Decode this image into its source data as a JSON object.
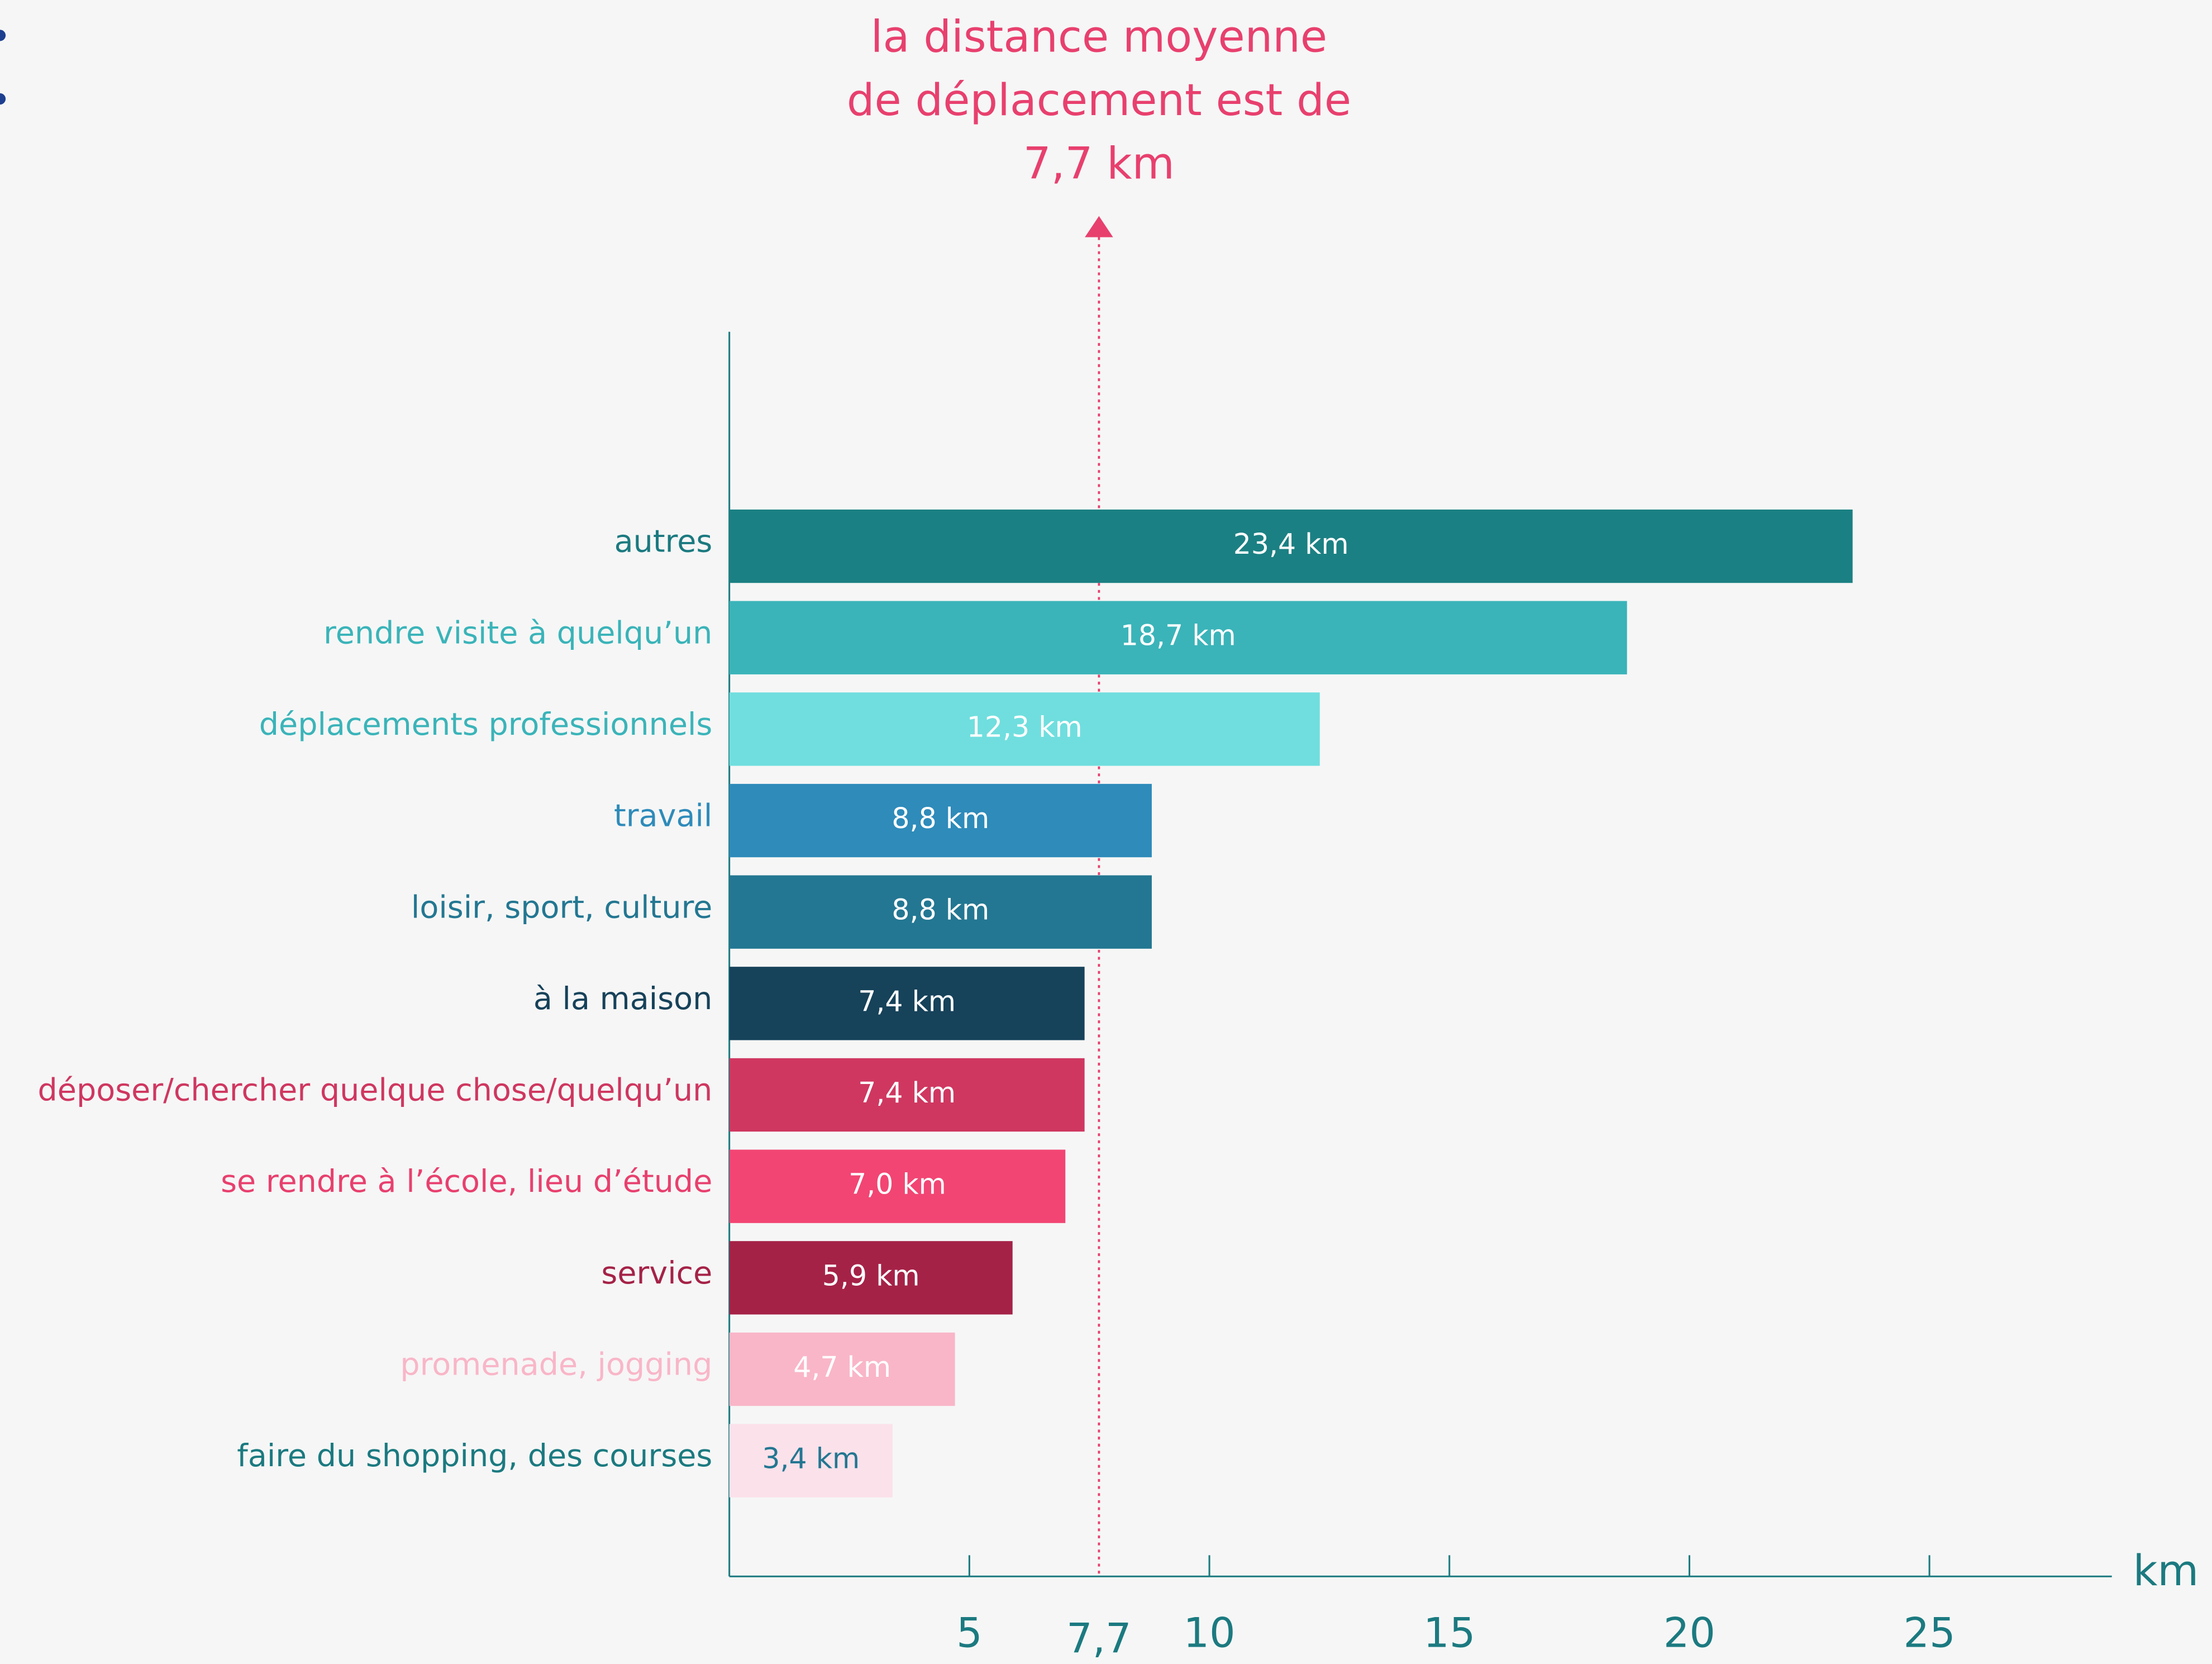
{
  "chart_data": {
    "type": "hbar",
    "annotation": [
      "la distance moyenne",
      "de déplacement est de",
      "7,7 km"
    ],
    "mean_line": 7.7,
    "mean_color": "#e8406e",
    "categories": [
      "autres",
      "rendre visite à quelqu’un",
      "déplacements professionnels",
      "travail",
      "loisir, sport, culture",
      "à la maison",
      "déposer/chercher quelque chose/quelqu’un",
      "se rendre à l’école, lieu d’étude",
      "service",
      "promenade, jogging",
      "faire du shopping, des courses"
    ],
    "values": [
      23.4,
      18.7,
      12.3,
      8.8,
      8.8,
      7.4,
      7.4,
      7.0,
      5.9,
      4.7,
      3.4
    ],
    "value_labels": [
      "23,4 km",
      "18,7 km",
      "12,3 km",
      "8,8 km",
      "8,8 km",
      "7,4 km",
      "7,4 km",
      "7,0 km",
      "5,9 km",
      "4,7 km",
      "3,4 km"
    ],
    "colors": [
      "#1b8083",
      "#3ab4b9",
      "#70dede",
      "#2e8bba",
      "#237792",
      "#16425a",
      "#cf3760",
      "#f24573",
      "#a52247",
      "#f9b6c8",
      "#fbe1ea"
    ],
    "label_colors": [
      "#1b7a80",
      "#3ab4b9",
      "#3ab4b9",
      "#2e8bba",
      "#237792",
      "#16425a",
      "#cf3760",
      "#e8406e",
      "#a52247",
      "#f9b6c8",
      "#1b7a80"
    ],
    "value_label_colors": [
      "#ffffff",
      "#ffffff",
      "#ffffff",
      "#ffffff",
      "#ffffff",
      "#ffffff",
      "#ffffff",
      "#ffffff",
      "#ffffff",
      "#ffffff",
      "#237792"
    ],
    "x_label": "km",
    "xlim": [
      0,
      28.8
    ],
    "xticks": [
      5,
      {
        "value": 7.7,
        "label": "7,7"
      },
      10,
      15,
      20,
      25
    ]
  }
}
